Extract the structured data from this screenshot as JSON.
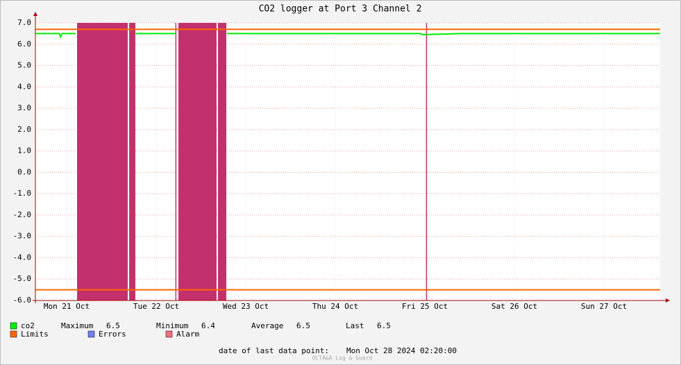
{
  "chart_data": {
    "type": "line",
    "title": "CO2 logger at Port 3 Channel 2",
    "xlim": [
      0.151,
      7.128
    ],
    "xticks": [
      {
        "value": 0.5,
        "label": "Mon 21 Oct"
      },
      {
        "value": 1.5,
        "label": "Tue 22 Oct"
      },
      {
        "value": 2.5,
        "label": "Wed 23 Oct"
      },
      {
        "value": 3.5,
        "label": "Thu 24 Oct"
      },
      {
        "value": 4.5,
        "label": "Fri 25 Oct"
      },
      {
        "value": 5.5,
        "label": "Sat 26 Oct"
      },
      {
        "value": 6.5,
        "label": "Sun 27 Oct"
      }
    ],
    "ylim": [
      -6,
      7
    ],
    "yticks": [
      {
        "value": 7,
        "label": "7.0"
      },
      {
        "value": 6,
        "label": "6.0"
      },
      {
        "value": 5,
        "label": "5.0"
      },
      {
        "value": 4,
        "label": "4.0"
      },
      {
        "value": 3,
        "label": "3.0"
      },
      {
        "value": 2,
        "label": "2.0"
      },
      {
        "value": 1,
        "label": "1.0"
      },
      {
        "value": 0,
        "label": "0.0"
      },
      {
        "value": -1,
        "label": "-1.0"
      },
      {
        "value": -2,
        "label": "-2.0"
      },
      {
        "value": -3,
        "label": "-3.0"
      },
      {
        "value": -4,
        "label": "-4.0"
      },
      {
        "value": -5,
        "label": "-5.0"
      },
      {
        "value": -6,
        "label": "-6.0"
      }
    ],
    "grid": true,
    "x": [
      0.151,
      0.3,
      0.42,
      0.43,
      0.45,
      0.6,
      0.66,
      1.27,
      1.5,
      1.72,
      1.73,
      2.29,
      2.8,
      3.3,
      3.6,
      3.9,
      4.2,
      4.45,
      4.48,
      4.9,
      5.3,
      5.8,
      6.3,
      6.8,
      7.128
    ],
    "series": [
      {
        "name": "co2",
        "color": "#00ee00",
        "values": [
          6.5,
          6.5,
          6.5,
          6.35,
          6.5,
          6.5,
          null,
          6.5,
          6.5,
          6.5,
          null,
          6.5,
          6.5,
          6.5,
          6.5,
          6.5,
          6.5,
          6.5,
          6.45,
          6.5,
          6.5,
          6.5,
          6.5,
          6.5,
          6.5
        ]
      }
    ],
    "stats": [
      {
        "name": "Maximum",
        "value": 6.5
      },
      {
        "name": "Minimum",
        "value": 6.4
      },
      {
        "name": "Average",
        "value": 6.5
      },
      {
        "name": "Last",
        "value": 6.5
      }
    ],
    "limits": {
      "name": "Limits",
      "color": "#ff6600",
      "values": [
        6.7,
        -5.5
      ]
    },
    "errors": {
      "name": "Errors",
      "color": "#7080f0"
    },
    "alarm": {
      "name": "Alarm",
      "color": "#f07080",
      "band_color": "#c3306e",
      "intervals": [
        [
          0.616,
          1.182
        ],
        [
          1.198,
          1.267
        ],
        [
          1.714,
          1.72
        ],
        [
          1.748,
          2.174
        ],
        [
          2.19,
          2.283
        ],
        [
          4.513,
          4.519
        ]
      ]
    },
    "last_data_point_label": "date of last data point:",
    "last_data_point": "Mon Oct 28 2024 02:20:00",
    "footer": "OCTA&A Log & Guard"
  }
}
